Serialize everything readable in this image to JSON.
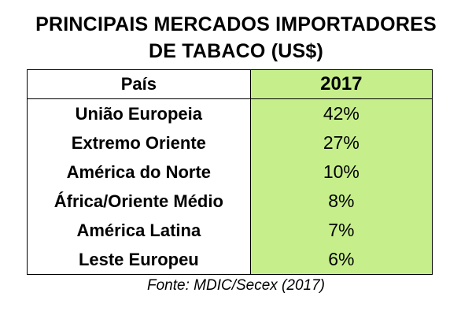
{
  "title_line1": "PRINCIPAIS MERCADOS IMPORTADORES",
  "title_line2": "DE TABACO (US$)",
  "source": "Fonte: MDIC/Secex (2017)",
  "colors": {
    "highlight": "#c6ef8c",
    "border": "#000000"
  },
  "chart_data": {
    "type": "table",
    "title": "PRINCIPAIS MERCADOS IMPORTADORES DE TABACO (US$)",
    "columns": [
      "País",
      "2017"
    ],
    "rows": [
      {
        "country": "União Europeia",
        "value": "42%"
      },
      {
        "country": "Extremo Oriente",
        "value": "27%"
      },
      {
        "country": "América do Norte",
        "value": "10%"
      },
      {
        "country": "África/Oriente Médio",
        "value": "8%"
      },
      {
        "country": "América Latina",
        "value": "7%"
      },
      {
        "country": "Leste Europeu",
        "value": "6%"
      }
    ]
  }
}
